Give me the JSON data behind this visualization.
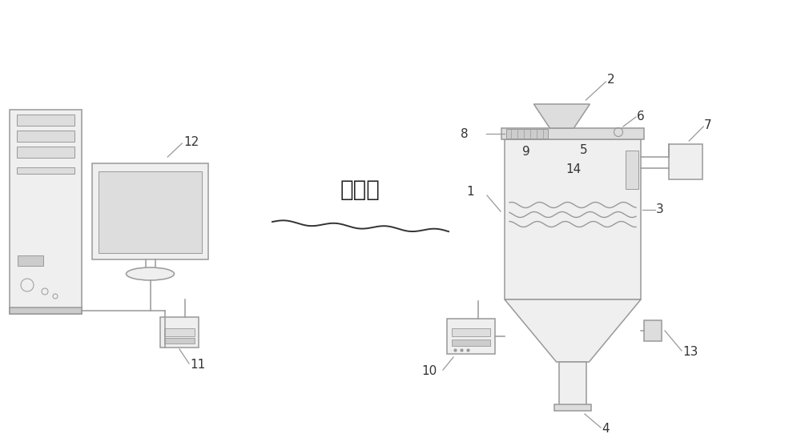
{
  "bg_color": "#ffffff",
  "line_color": "#999999",
  "text_color": "#333333",
  "em_wave_text": "电磁波",
  "em_wave_fontsize": 20,
  "label_fontsize": 11,
  "figsize": [
    10.0,
    5.42
  ],
  "dpi": 100,
  "lw": 1.1,
  "fc_light": "#efefef",
  "fc_mid": "#dddddd",
  "fc_dark": "#cccccc"
}
